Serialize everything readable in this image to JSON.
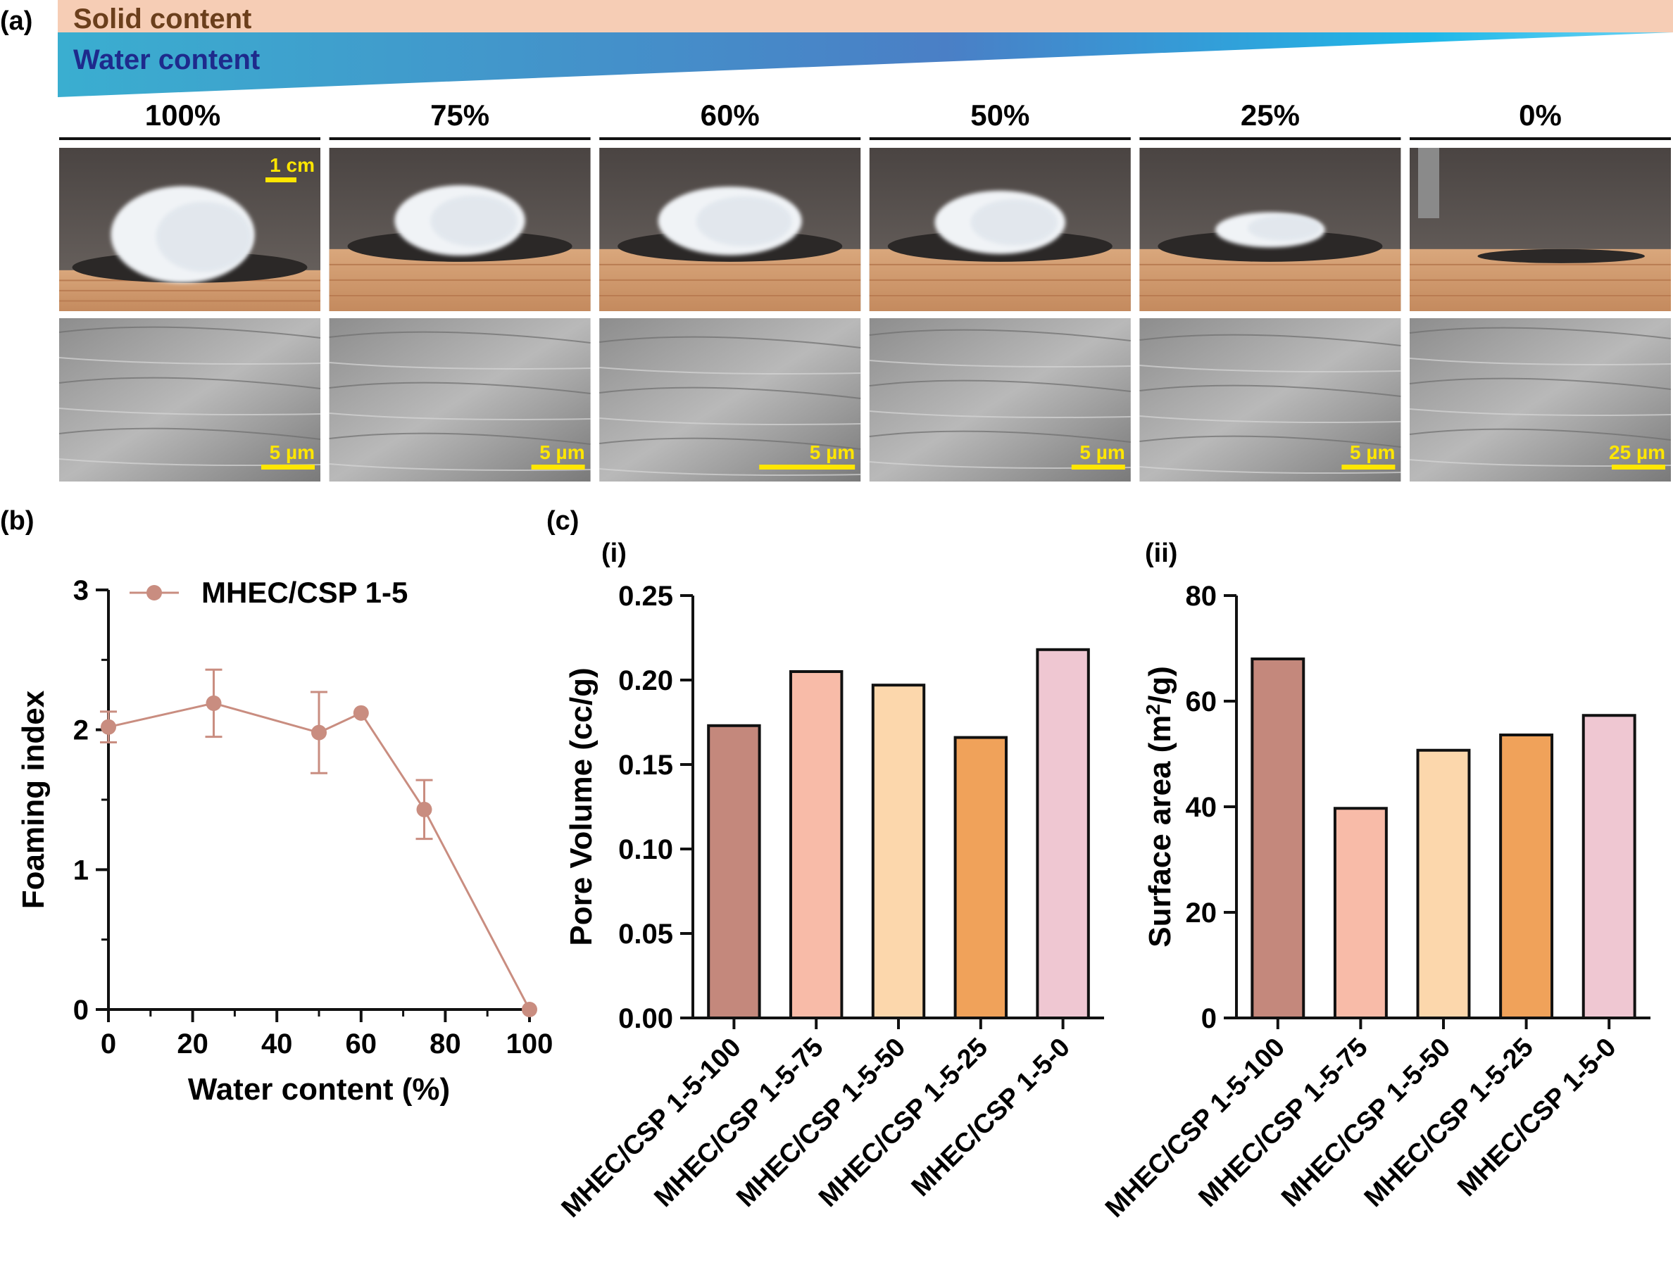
{
  "panel_a": {
    "label": "(a)",
    "gradient": {
      "solid_label": "Solid content",
      "water_label": "Water content",
      "solid_color": "#f6cdb5",
      "solid_text_color": "#6b3f1c",
      "water_color_start": "#3fa6c9",
      "water_color_end": "#4a80c4",
      "water_text_color": "#1e2a8c"
    },
    "columns": [
      {
        "header": "100%",
        "photo_scale": "1 cm",
        "sem_scale": "5 µm",
        "sem_bar": "short"
      },
      {
        "header": "75%",
        "photo_scale": "",
        "sem_scale": "5 µm",
        "sem_bar": "short"
      },
      {
        "header": "60%",
        "photo_scale": "",
        "sem_scale": "5 µm",
        "sem_bar": "long"
      },
      {
        "header": "50%",
        "photo_scale": "",
        "sem_scale": "5 µm",
        "sem_bar": "short"
      },
      {
        "header": "25%",
        "photo_scale": "",
        "sem_scale": "5 µm",
        "sem_bar": "short"
      },
      {
        "header": "0%",
        "photo_scale": "",
        "sem_scale": "25 µm",
        "sem_bar": "short"
      }
    ],
    "scale_color": "#ffe600"
  },
  "chart_data": [
    {
      "panel": "(b)",
      "type": "line",
      "xlabel": "Water content (%)",
      "ylabel": "Foaming index",
      "xlim": [
        0,
        100
      ],
      "ylim": [
        0,
        3
      ],
      "xticks": [
        "0",
        "20",
        "40",
        "60",
        "80",
        "100"
      ],
      "yticks": [
        "0",
        "1",
        "2",
        "3"
      ],
      "legend": "top-left",
      "series": [
        {
          "name": "MHEC/CSP 1-5",
          "color": "#c98d80",
          "x": [
            0,
            25,
            50,
            60,
            75,
            100
          ],
          "y": [
            2.02,
            2.19,
            1.98,
            2.12,
            1.43,
            0
          ],
          "error": [
            0.11,
            0.24,
            0.29,
            0.0,
            0.21,
            0.0
          ]
        }
      ]
    },
    {
      "panel": "(c)",
      "subpanel": "(i)",
      "type": "bar",
      "ylabel": "Pore Volume (cc/g)",
      "ylim": [
        0,
        0.25
      ],
      "yticks": [
        "0.00",
        "0.05",
        "0.10",
        "0.15",
        "0.20",
        "0.25"
      ],
      "categories": [
        "MHEC/CSP 1-5-100",
        "MHEC/CSP 1-5-75",
        "MHEC/CSP 1-5-50",
        "MHEC/CSP 1-5-25",
        "MHEC/CSP 1-5-0"
      ],
      "values": [
        0.173,
        0.205,
        0.197,
        0.166,
        0.218
      ],
      "colors": [
        "#c4887c",
        "#f8bba8",
        "#fcd7ac",
        "#f0a25a",
        "#efc7d2"
      ]
    },
    {
      "panel": "(c)",
      "subpanel": "(ii)",
      "type": "bar",
      "ylabel_main": "Surface area (m",
      "ylabel_sup": "2",
      "ylabel_end": "/g)",
      "ylim": [
        0,
        80
      ],
      "yticks": [
        "0",
        "20",
        "40",
        "60",
        "80"
      ],
      "categories": [
        "MHEC/CSP 1-5-100",
        "MHEC/CSP 1-5-75",
        "MHEC/CSP 1-5-50",
        "MHEC/CSP 1-5-25",
        "MHEC/CSP 1-5-0"
      ],
      "values": [
        68,
        39.7,
        50.7,
        53.6,
        57.3
      ],
      "colors": [
        "#c4887c",
        "#f8bba8",
        "#fcd7ac",
        "#f0a25a",
        "#efc7d2"
      ]
    }
  ],
  "panel_c_label": "(c)"
}
